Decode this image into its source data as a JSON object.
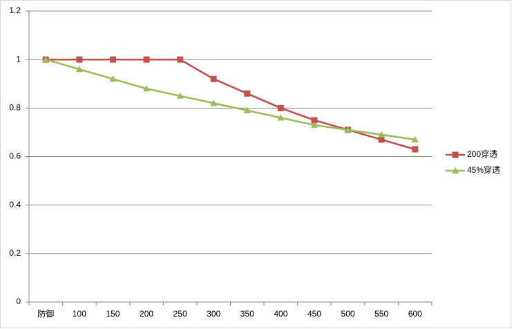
{
  "chart_data": {
    "type": "line",
    "categories": [
      "防御",
      "100",
      "150",
      "200",
      "250",
      "300",
      "350",
      "400",
      "450",
      "500",
      "550",
      "600"
    ],
    "series": [
      {
        "name": "200穿透",
        "color": "#c0504d",
        "marker": "square",
        "values": [
          1,
          1,
          1,
          1,
          1,
          0.92,
          0.86,
          0.8,
          0.75,
          0.71,
          0.67,
          0.63
        ]
      },
      {
        "name": "45%穿透",
        "color": "#9bbb59",
        "marker": "triangle",
        "values": [
          1,
          0.96,
          0.92,
          0.88,
          0.85,
          0.82,
          0.79,
          0.76,
          0.73,
          0.71,
          0.69,
          0.67
        ]
      }
    ],
    "ylim": [
      0,
      1.2
    ],
    "yticks": [
      0,
      0.2,
      0.4,
      0.6,
      0.8,
      1,
      1.2
    ],
    "grid": true,
    "legend": "right"
  }
}
